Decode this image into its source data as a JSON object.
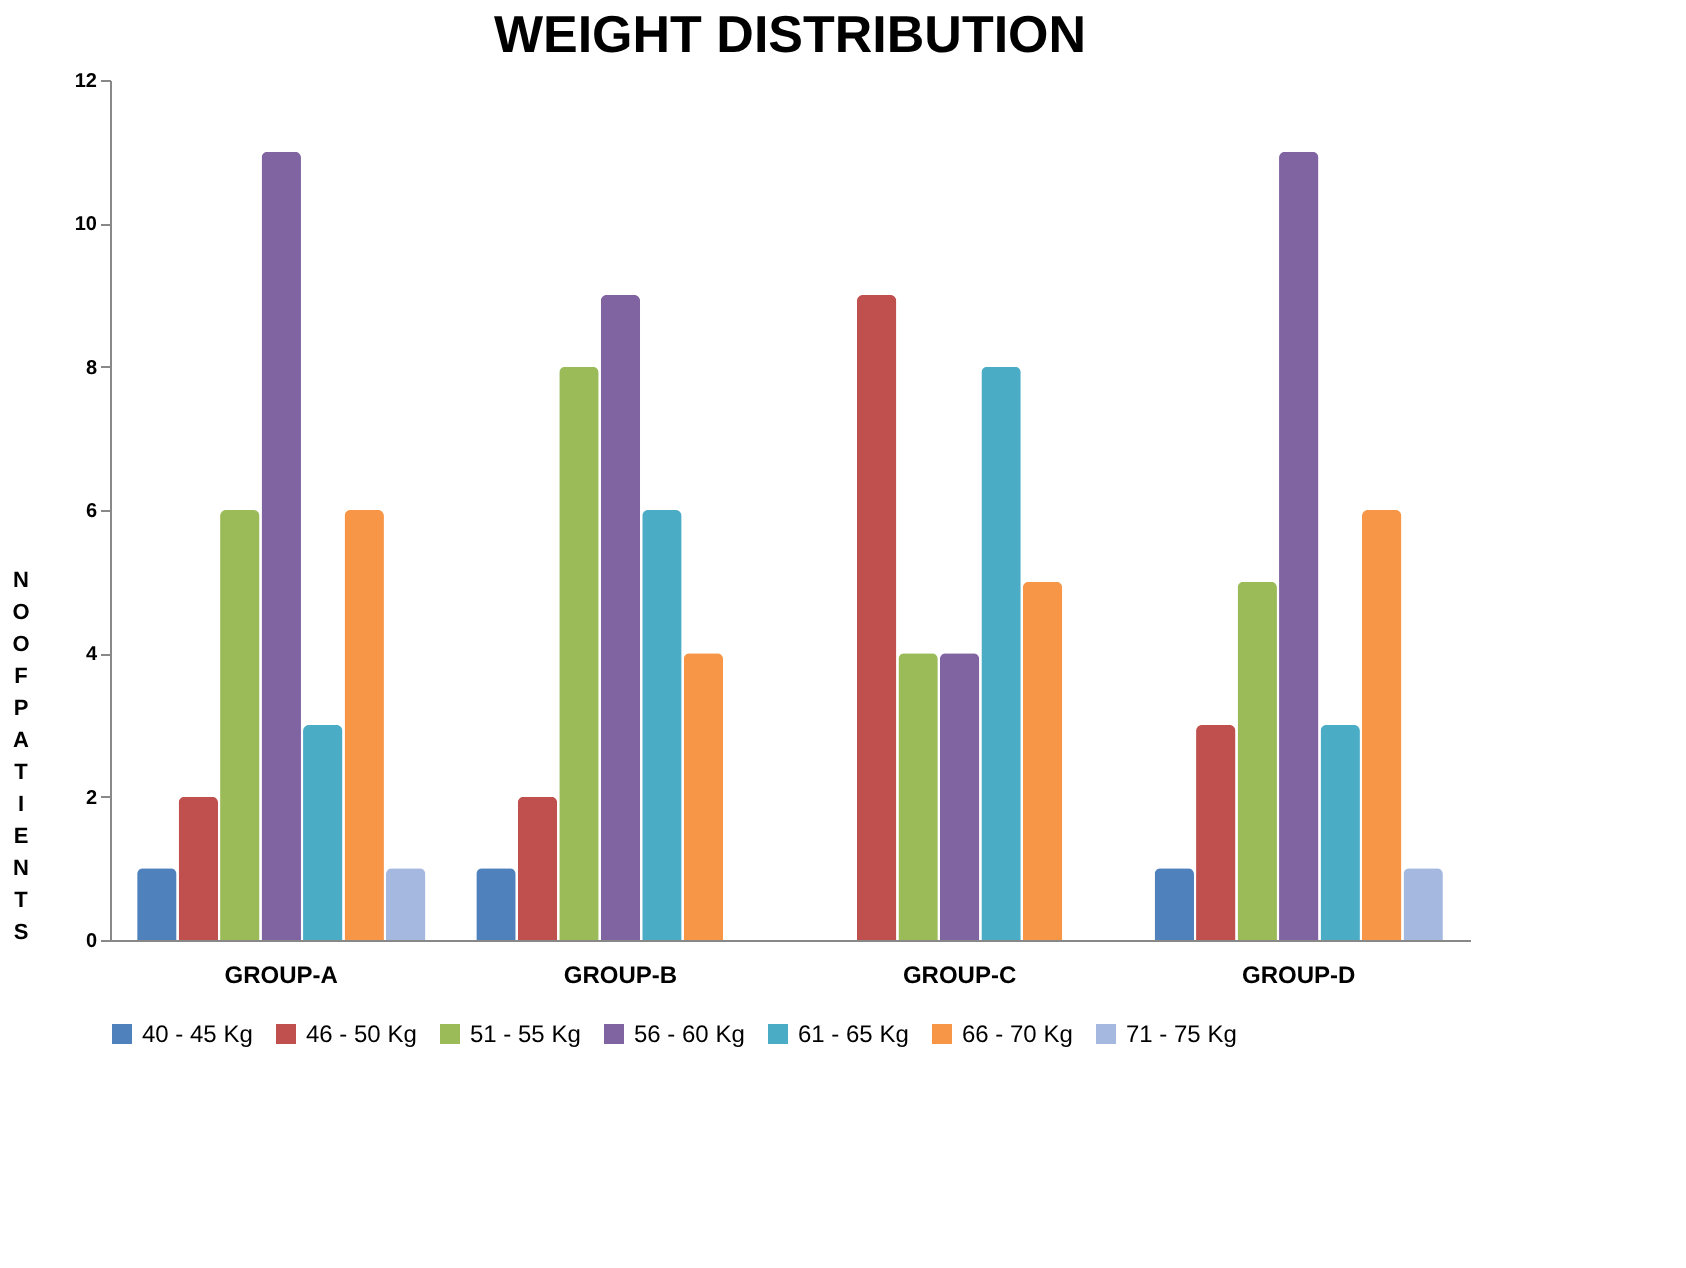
{
  "chart_data": {
    "type": "bar",
    "title": "WEIGHT DISTRIBUTION",
    "ylabel": "NO OF PATIENTS",
    "categories": [
      "GROUP-A",
      "GROUP-B",
      "GROUP-C",
      "GROUP-D"
    ],
    "series": [
      {
        "name": "40 - 45 Kg",
        "color": "#4f81bd",
        "values": [
          1,
          1,
          0,
          1
        ]
      },
      {
        "name": "46 - 50 Kg",
        "color": "#c0504d",
        "values": [
          2,
          2,
          9,
          3
        ]
      },
      {
        "name": "51 - 55 Kg",
        "color": "#9bbb59",
        "values": [
          6,
          8,
          4,
          5
        ]
      },
      {
        "name": "56 - 60 Kg",
        "color": "#8064a2",
        "values": [
          11,
          9,
          4,
          11
        ]
      },
      {
        "name": "61 - 65 Kg",
        "color": "#4bacc6",
        "values": [
          3,
          6,
          8,
          3
        ]
      },
      {
        "name": "66 - 70 Kg",
        "color": "#f79646",
        "values": [
          6,
          4,
          5,
          6
        ]
      },
      {
        "name": "71 - 75 Kg",
        "color": "#a5b9e0",
        "values": [
          1,
          0,
          0,
          1
        ]
      }
    ],
    "ylim": [
      0,
      12
    ],
    "yticks": [
      0,
      2,
      4,
      6,
      8,
      10,
      12
    ],
    "grid": false,
    "legend": "bottom"
  }
}
